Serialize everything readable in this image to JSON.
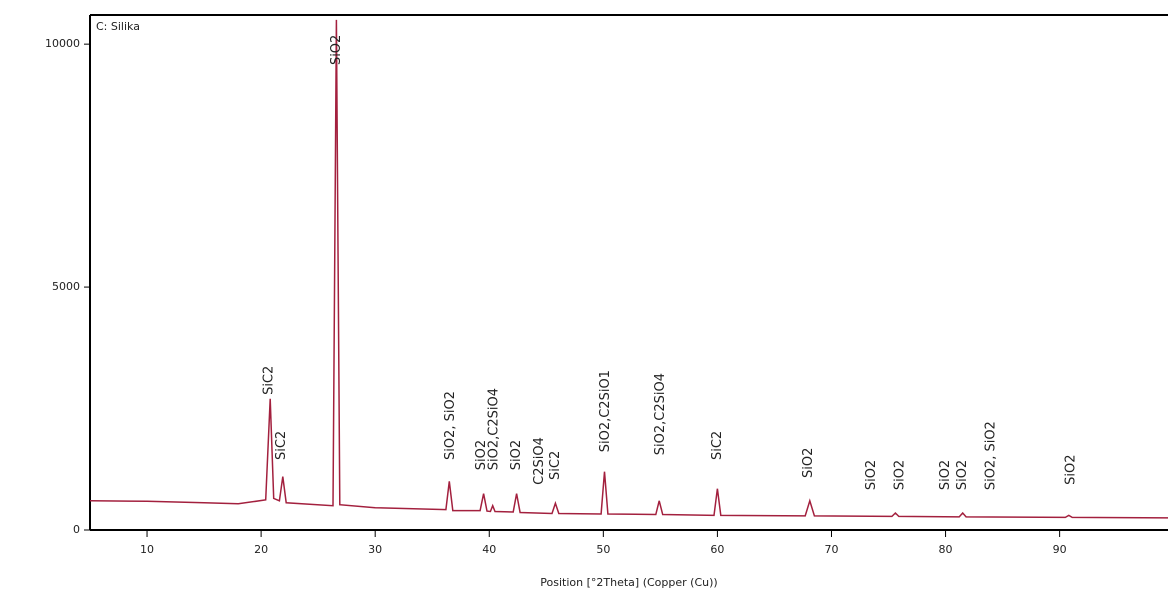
{
  "chart_data": {
    "type": "line",
    "title": "C: Silika",
    "x_label": "Position [°2Theta] (Copper (Cu))",
    "x": [
      5,
      10,
      15,
      18,
      20.4,
      20.8,
      21.1,
      21.6,
      21.9,
      22.2,
      26.3,
      26.6,
      26.9,
      30,
      36.2,
      36.5,
      36.8,
      39.2,
      39.5,
      39.8,
      40.1,
      40.3,
      40.5,
      42.1,
      42.4,
      42.7,
      45.5,
      45.8,
      46.1,
      49.8,
      50.1,
      50.4,
      54.6,
      54.9,
      55.2,
      59.7,
      60.0,
      60.3,
      67.7,
      68.1,
      68.5,
      75.3,
      75.6,
      75.9,
      81.2,
      81.5,
      81.8,
      90.5,
      90.8,
      91.1,
      99.5
    ],
    "series": [
      {
        "name": "C: Silika",
        "color": "#a3203e",
        "values": [
          600,
          590,
          560,
          540,
          620,
          2700,
          650,
          600,
          1100,
          560,
          500,
          10500,
          520,
          460,
          420,
          1000,
          400,
          400,
          750,
          390,
          380,
          500,
          380,
          370,
          750,
          360,
          340,
          550,
          340,
          330,
          1200,
          330,
          320,
          600,
          320,
          300,
          850,
          300,
          290,
          600,
          290,
          280,
          350,
          280,
          270,
          350,
          270,
          260,
          300,
          260,
          250
        ]
      }
    ],
    "xlim": [
      5,
      99.5
    ],
    "xticks": [
      10,
      20,
      30,
      40,
      50,
      60,
      70,
      80,
      90
    ],
    "ylim": [
      0,
      10600
    ],
    "yticks": [
      0,
      5000,
      10000
    ],
    "annotations": [
      {
        "text": "SiC2",
        "x": 20.7,
        "y": 2780
      },
      {
        "text": "SiC2",
        "x": 21.8,
        "y": 1440
      },
      {
        "text": "SiO2",
        "x": 26.6,
        "y": 9570
      },
      {
        "text": "SiO2, SiO2",
        "x": 36.6,
        "y": 1440
      },
      {
        "text": "SiO2",
        "x": 39.3,
        "y": 1230
      },
      {
        "text": "SiO2,C2SiO4",
        "x": 40.4,
        "y": 1230
      },
      {
        "text": "SiO2",
        "x": 42.4,
        "y": 1230
      },
      {
        "text": "C2SiO4",
        "x": 44.4,
        "y": 930
      },
      {
        "text": "SiC2",
        "x": 45.8,
        "y": 1030
      },
      {
        "text": "SiO2,C2SiO1",
        "x": 50.2,
        "y": 1600
      },
      {
        "text": "SiO2,C2SiO4",
        "x": 55,
        "y": 1540
      },
      {
        "text": "SiC2",
        "x": 60,
        "y": 1440
      },
      {
        "text": "SiO2",
        "x": 68,
        "y": 1070
      },
      {
        "text": "SiO2",
        "x": 73.5,
        "y": 820
      },
      {
        "text": "SiO2",
        "x": 76,
        "y": 820
      },
      {
        "text": "SiO2",
        "x": 80,
        "y": 820
      },
      {
        "text": "SiO2",
        "x": 81.5,
        "y": 820
      },
      {
        "text": "SiO2, SiO2",
        "x": 84,
        "y": 820
      },
      {
        "text": "SiO2",
        "x": 91,
        "y": 930
      }
    ]
  }
}
